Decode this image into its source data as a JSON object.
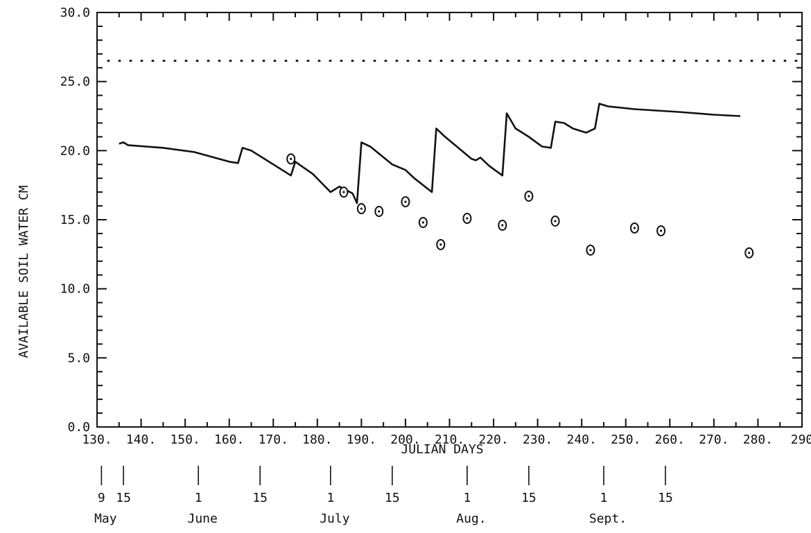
{
  "chart_data": {
    "type": "line",
    "xlabel": "JULIAN DAYS",
    "ylabel": "AVAILABLE SOIL WATER CM",
    "xlim": [
      130,
      290
    ],
    "ylim": [
      0,
      30
    ],
    "x_ticks": [
      {
        "v": 130,
        "label": "130."
      },
      {
        "v": 140,
        "label": "140."
      },
      {
        "v": 150,
        "label": "150."
      },
      {
        "v": 160,
        "label": "160."
      },
      {
        "v": 170,
        "label": "170."
      },
      {
        "v": 180,
        "label": "180."
      },
      {
        "v": 190,
        "label": "190."
      },
      {
        "v": 200,
        "label": "200."
      },
      {
        "v": 210,
        "label": "210."
      },
      {
        "v": 220,
        "label": "220."
      },
      {
        "v": 230,
        "label": "230."
      },
      {
        "v": 240,
        "label": "240."
      },
      {
        "v": 250,
        "label": "250."
      },
      {
        "v": 260,
        "label": "260."
      },
      {
        "v": 270,
        "label": "270."
      },
      {
        "v": 280,
        "label": "280."
      },
      {
        "v": 290,
        "label": "290"
      }
    ],
    "y_ticks": [
      {
        "v": 0,
        "label": "0.0"
      },
      {
        "v": 5,
        "label": "5.0"
      },
      {
        "v": 10,
        "label": "10.0"
      },
      {
        "v": 15,
        "label": "15.0"
      },
      {
        "v": 20,
        "label": "20.0"
      },
      {
        "v": 25,
        "label": "25.0"
      },
      {
        "v": 30,
        "label": "30.0"
      }
    ],
    "reference_line": {
      "style": "dotted",
      "y": 26.5
    },
    "series": [
      {
        "style": "line",
        "points": [
          [
            135,
            20.5
          ],
          [
            136,
            20.6
          ],
          [
            137,
            20.4
          ],
          [
            145,
            20.2
          ],
          [
            152,
            19.9
          ],
          [
            160,
            19.2
          ],
          [
            162,
            19.1
          ],
          [
            163,
            20.2
          ],
          [
            164,
            20.1
          ],
          [
            165,
            20.0
          ],
          [
            172,
            18.6
          ],
          [
            174,
            18.2
          ],
          [
            175,
            19.2
          ],
          [
            179,
            18.3
          ],
          [
            183,
            17.0
          ],
          [
            185,
            17.4
          ],
          [
            188,
            16.9
          ],
          [
            189,
            16.2
          ],
          [
            190,
            20.6
          ],
          [
            192,
            20.3
          ],
          [
            197,
            19.0
          ],
          [
            200,
            18.6
          ],
          [
            202,
            18.0
          ],
          [
            206,
            17.0
          ],
          [
            207,
            21.6
          ],
          [
            209,
            21.0
          ],
          [
            212,
            20.2
          ],
          [
            215,
            19.4
          ],
          [
            216,
            19.3
          ],
          [
            217,
            19.5
          ],
          [
            219,
            18.9
          ],
          [
            222,
            18.2
          ],
          [
            223,
            22.7
          ],
          [
            225,
            21.6
          ],
          [
            228,
            21.0
          ],
          [
            231,
            20.3
          ],
          [
            233,
            20.2
          ],
          [
            234,
            22.1
          ],
          [
            236,
            22.0
          ],
          [
            238,
            21.6
          ],
          [
            241,
            21.3
          ],
          [
            243,
            21.6
          ],
          [
            244,
            23.4
          ],
          [
            246,
            23.2
          ],
          [
            252,
            23.0
          ],
          [
            262,
            22.8
          ],
          [
            270,
            22.6
          ],
          [
            276,
            22.5
          ]
        ]
      },
      {
        "style": "circle-markers",
        "points": [
          [
            174,
            19.4
          ],
          [
            186,
            17.0
          ],
          [
            190,
            15.8
          ],
          [
            194,
            15.6
          ],
          [
            200,
            16.3
          ],
          [
            204,
            14.8
          ],
          [
            208,
            13.2
          ],
          [
            214,
            15.1
          ],
          [
            222,
            14.6
          ],
          [
            228,
            16.7
          ],
          [
            234,
            14.9
          ],
          [
            242,
            12.8
          ],
          [
            252,
            14.4
          ],
          [
            258,
            14.2
          ],
          [
            278,
            12.6
          ]
        ]
      }
    ],
    "date_markers": [
      {
        "v": 131,
        "label": "9",
        "month": "May"
      },
      {
        "v": 136,
        "label": "15",
        "month": ""
      },
      {
        "v": 153,
        "label": "1",
        "month": "June"
      },
      {
        "v": 167,
        "label": "15",
        "month": ""
      },
      {
        "v": 183,
        "label": "1",
        "month": "July"
      },
      {
        "v": 197,
        "label": "15",
        "month": ""
      },
      {
        "v": 214,
        "label": "1",
        "month": "Aug."
      },
      {
        "v": 228,
        "label": "15",
        "month": ""
      },
      {
        "v": 245,
        "label": "1",
        "month": "Sept."
      },
      {
        "v": 259,
        "label": "15",
        "month": ""
      }
    ]
  }
}
